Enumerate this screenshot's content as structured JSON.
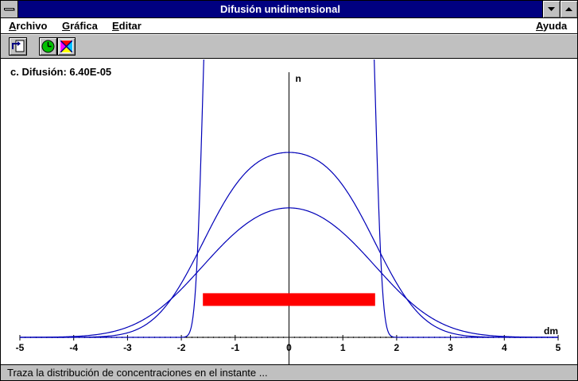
{
  "window": {
    "title": "Difusión unidimensional"
  },
  "menu": {
    "archivo": {
      "first": "A",
      "rest": "rchivo"
    },
    "grafica": {
      "first": "G",
      "rest": "ráfica"
    },
    "editar": {
      "first": "E",
      "rest": "ditar"
    },
    "ayuda": {
      "first": "A",
      "rest": "yuda"
    }
  },
  "toolbar": {
    "buttons": [
      {
        "icon": "export-page-icon"
      },
      {
        "icon": "clock-icon"
      },
      {
        "icon": "color-palette-icon"
      }
    ]
  },
  "plot": {
    "coefficient_label": "c. Difusión: 6.40E-05",
    "y_axis_label": "n",
    "x_axis_label": "dm",
    "colors": {
      "curves": "#0000b8",
      "initial_bar": "#ff0000",
      "axes": "#000000"
    }
  },
  "chart_data": {
    "type": "line",
    "xlabel": "dm",
    "ylabel": "n",
    "xlim": [
      -5,
      5
    ],
    "x_ticks": [
      -5,
      -4,
      -3,
      -2,
      -1,
      0,
      1,
      2,
      3,
      4,
      5
    ],
    "tick_labels": [
      "-5",
      "-4",
      "-3",
      "-2",
      "-1",
      "0",
      "1",
      "2",
      "3",
      "4",
      "5"
    ],
    "ylim": [
      0,
      1.6
    ],
    "initial_distribution": {
      "x_start": -1.6,
      "x_end": 1.6,
      "n": 0.12
    },
    "curves": [
      {
        "model": "diffused block",
        "half_width": 1.6,
        "spread": 0.15,
        "peak": 1.6,
        "clipped_at_top": true
      },
      {
        "model": "diffused block",
        "half_width": 1.6,
        "spread": 1.0,
        "peak": 0.6
      },
      {
        "model": "diffused block",
        "half_width": 1.6,
        "spread": 1.35,
        "peak": 0.42
      }
    ]
  },
  "status": {
    "text": "Traza la distribución de concentraciones en el instante ..."
  }
}
